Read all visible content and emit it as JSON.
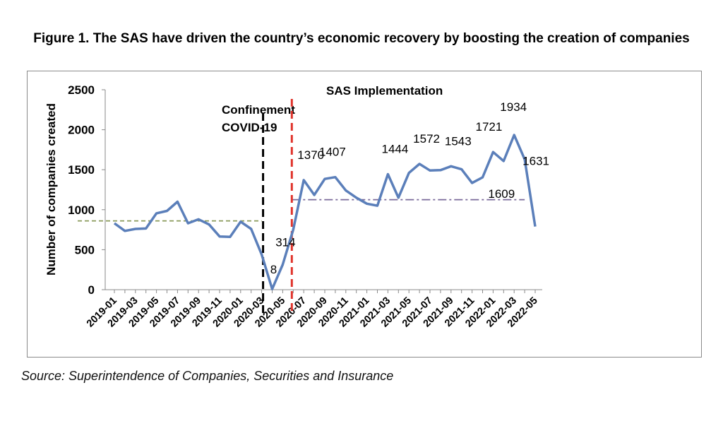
{
  "title": "Figure 1. The SAS have driven the country’s economic recovery by boosting the creation of companies",
  "source": "Source: Superintendence of Companies, Securities and Insurance",
  "chart_data": {
    "type": "line",
    "ylabel": "Number of companies created",
    "xlabel": "",
    "ylim": [
      0,
      2500
    ],
    "yticks": [
      0,
      500,
      1000,
      1500,
      2000,
      2500
    ],
    "x": [
      "2019-01",
      "2019-02",
      "2019-03",
      "2019-04",
      "2019-05",
      "2019-06",
      "2019-07",
      "2019-08",
      "2019-09",
      "2019-10",
      "2019-11",
      "2019-12",
      "2020-01",
      "2020-02",
      "2020-03",
      "2020-04",
      "2020-05",
      "2020-06",
      "2020-07",
      "2020-08",
      "2020-09",
      "2020-10",
      "2020-11",
      "2020-12",
      "2021-01",
      "2021-02",
      "2021-03",
      "2021-04",
      "2021-05",
      "2021-06",
      "2021-07",
      "2021-08",
      "2021-09",
      "2021-10",
      "2021-11",
      "2021-12",
      "2022-01",
      "2022-02",
      "2022-03",
      "2022-04",
      "2022-05"
    ],
    "xtick_labels": [
      "2019-01",
      "2019-03",
      "2019-05",
      "2019-07",
      "2019-09",
      "2019-11",
      "2020-01",
      "2020-03",
      "2020-05",
      "2020-07",
      "2020-09",
      "2020-11",
      "2021-01",
      "2021-03",
      "2021-05",
      "2021-07",
      "2021-09",
      "2021-11",
      "2022-01",
      "2022-03",
      "2022-05"
    ],
    "series": [
      {
        "name": "Companies created",
        "color": "#5b7fba",
        "values": [
          830,
          735,
          760,
          765,
          955,
          985,
          1100,
          830,
          880,
          815,
          665,
          660,
          850,
          760,
          440,
          8,
          314,
          750,
          1370,
          1185,
          1385,
          1407,
          1240,
          1150,
          1075,
          1050,
          1444,
          1150,
          1460,
          1572,
          1490,
          1495,
          1543,
          1505,
          1335,
          1405,
          1721,
          1609,
          1934,
          1631,
          790
        ]
      }
    ],
    "data_labels": [
      {
        "x": "2020-04",
        "text": "8"
      },
      {
        "x": "2020-05",
        "text": "314"
      },
      {
        "x": "2020-07",
        "text": "1370"
      },
      {
        "x": "2020-10",
        "text": "1407"
      },
      {
        "x": "2021-03",
        "text": "1444"
      },
      {
        "x": "2021-06",
        "text": "1572"
      },
      {
        "x": "2021-09",
        "text": "1543"
      },
      {
        "x": "2022-01",
        "text": "1721"
      },
      {
        "x": "2022-02",
        "text": "1609"
      },
      {
        "x": "2022-03",
        "text": "1934"
      },
      {
        "x": "2022-04",
        "text": "1631"
      }
    ],
    "reference_lines": [
      {
        "name": "pre-pandemic-average",
        "value": 860,
        "x_from": "2019-01",
        "x_to": "2020-03",
        "color": "#8a9a5b",
        "style": "dashed"
      },
      {
        "name": "post-sas-average",
        "value": 1125,
        "x_from": "2020-06",
        "x_to": "2022-04",
        "color": "#7a6a9a",
        "style": "dash-dot"
      }
    ],
    "annotations": [
      {
        "name": "confinement",
        "x": "2020-03",
        "lines": [
          "Confinement",
          "COVID-19"
        ],
        "color": "#000000"
      },
      {
        "name": "sas",
        "x": "2020-06",
        "lines": [
          "SAS Implementation"
        ],
        "color": "#e0342c"
      }
    ]
  }
}
